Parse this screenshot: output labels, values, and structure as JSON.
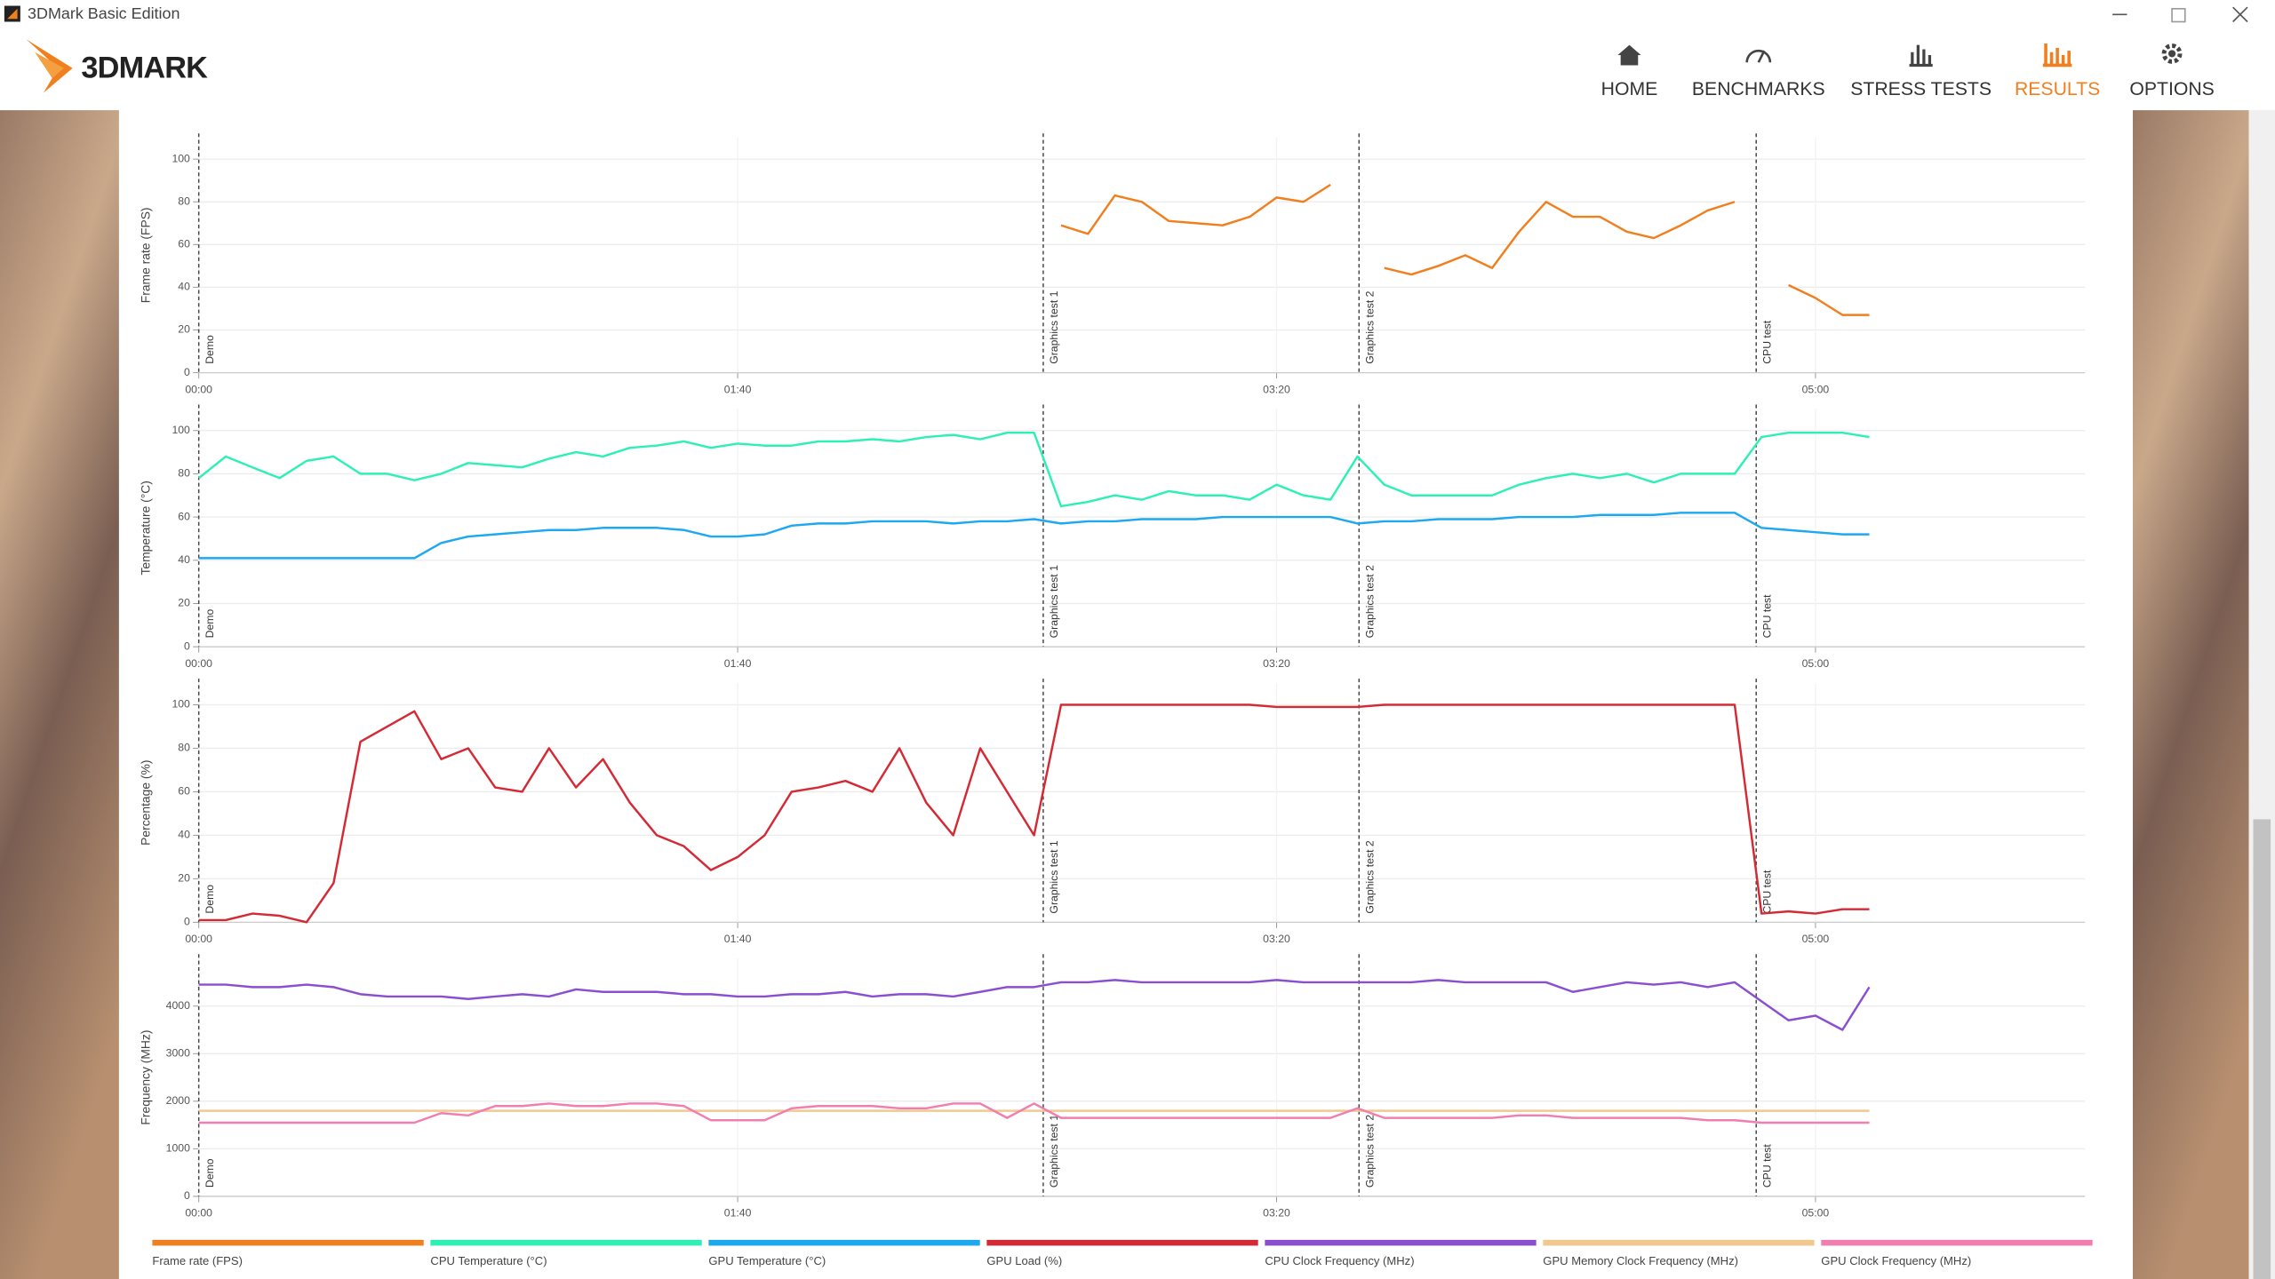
{
  "window_title": "3DMark Basic Edition",
  "logo": "3DMARK",
  "nav": {
    "items": [
      "HOME",
      "BENCHMARKS",
      "STRESS TESTS",
      "RESULTS",
      "OPTIONS"
    ],
    "active": "RESULTS"
  },
  "markers": [
    {
      "label": "Demo",
      "x": 0
    },
    {
      "label": "Graphics test 1",
      "x": 156.7
    },
    {
      "label": "Graphics test 2",
      "x": 215.3
    },
    {
      "label": "CPU test",
      "x": 289
    }
  ],
  "chart_data": [
    {
      "type": "line",
      "y_label": "Frame rate (FPS)",
      "xlim": [
        0,
        350
      ],
      "xticks": [
        {
          "value": 0,
          "label": "00:00"
        },
        {
          "value": 100,
          "label": "01:40"
        },
        {
          "value": 200,
          "label": "03:20"
        },
        {
          "value": 300,
          "label": "05:00"
        }
      ],
      "ylim": [
        0,
        110
      ],
      "yticks": [
        0,
        20,
        40,
        60,
        80,
        100
      ],
      "grid": true,
      "x": [
        0,
        5,
        10,
        15,
        20,
        25,
        30,
        35,
        40,
        45,
        50,
        55,
        60,
        65,
        70,
        75,
        80,
        85,
        90,
        95,
        100,
        105,
        110,
        115,
        120,
        125,
        130,
        135,
        140,
        145,
        150,
        155,
        160,
        165,
        170,
        175,
        180,
        185,
        190,
        195,
        200,
        205,
        210,
        215,
        220,
        225,
        230,
        235,
        240,
        245,
        250,
        255,
        260,
        265,
        270,
        275,
        280,
        285,
        290,
        295,
        300,
        305,
        310
      ],
      "series": [
        {
          "name": "Frame rate (FPS)",
          "color": "#f07f1f",
          "values": [
            null,
            null,
            null,
            null,
            null,
            null,
            null,
            null,
            null,
            null,
            null,
            null,
            null,
            null,
            null,
            null,
            null,
            null,
            null,
            null,
            null,
            null,
            null,
            null,
            null,
            null,
            null,
            null,
            null,
            null,
            null,
            null,
            69,
            65,
            83,
            80,
            71,
            70,
            69,
            73,
            82,
            80,
            88,
            null,
            49,
            46,
            50,
            55,
            49,
            66,
            80,
            73,
            73,
            66,
            63,
            69,
            76,
            80,
            null,
            41,
            35,
            27,
            27
          ]
        }
      ]
    },
    {
      "type": "line",
      "y_label": "Temperature (°C)",
      "xlim": [
        0,
        350
      ],
      "xticks": [
        {
          "value": 0,
          "label": "00:00"
        },
        {
          "value": 100,
          "label": "01:40"
        },
        {
          "value": 200,
          "label": "03:20"
        },
        {
          "value": 300,
          "label": "05:00"
        }
      ],
      "ylim": [
        0,
        110
      ],
      "yticks": [
        0,
        20,
        40,
        60,
        80,
        100
      ],
      "grid": true,
      "x": [
        0,
        5,
        10,
        15,
        20,
        25,
        30,
        35,
        40,
        45,
        50,
        55,
        60,
        65,
        70,
        75,
        80,
        85,
        90,
        95,
        100,
        105,
        110,
        115,
        120,
        125,
        130,
        135,
        140,
        145,
        150,
        155,
        160,
        165,
        170,
        175,
        180,
        185,
        190,
        195,
        200,
        205,
        210,
        215,
        220,
        225,
        230,
        235,
        240,
        245,
        250,
        255,
        260,
        265,
        270,
        275,
        280,
        285,
        290,
        295,
        300,
        305,
        310
      ],
      "series": [
        {
          "name": "CPU Temperature (°C)",
          "color": "#2ef0b5",
          "values": [
            78,
            88,
            83,
            78,
            86,
            88,
            80,
            80,
            77,
            80,
            85,
            84,
            83,
            87,
            90,
            88,
            92,
            93,
            95,
            92,
            94,
            93,
            93,
            95,
            95,
            96,
            95,
            97,
            98,
            96,
            99,
            99,
            65,
            67,
            70,
            68,
            72,
            70,
            70,
            68,
            75,
            70,
            68,
            88,
            75,
            70,
            70,
            70,
            70,
            75,
            78,
            80,
            78,
            80,
            76,
            80,
            80,
            80,
            97,
            99,
            99,
            99,
            97
          ]
        },
        {
          "name": "GPU Temperature (°C)",
          "color": "#1ea8f0",
          "values": [
            41,
            41,
            41,
            41,
            41,
            41,
            41,
            41,
            41,
            48,
            51,
            52,
            53,
            54,
            54,
            55,
            55,
            55,
            54,
            51,
            51,
            52,
            56,
            57,
            57,
            58,
            58,
            58,
            57,
            58,
            58,
            59,
            57,
            58,
            58,
            59,
            59,
            59,
            60,
            60,
            60,
            60,
            60,
            57,
            58,
            58,
            59,
            59,
            59,
            60,
            60,
            60,
            61,
            61,
            61,
            62,
            62,
            62,
            55,
            54,
            53,
            52,
            52
          ]
        }
      ]
    },
    {
      "type": "line",
      "y_label": "Percentage (%)",
      "xlim": [
        0,
        350
      ],
      "xticks": [
        {
          "value": 0,
          "label": "00:00"
        },
        {
          "value": 100,
          "label": "01:40"
        },
        {
          "value": 200,
          "label": "03:20"
        },
        {
          "value": 300,
          "label": "05:00"
        }
      ],
      "ylim": [
        0,
        110
      ],
      "yticks": [
        0,
        20,
        40,
        60,
        80,
        100
      ],
      "grid": true,
      "x": [
        0,
        5,
        10,
        15,
        20,
        25,
        30,
        35,
        40,
        45,
        50,
        55,
        60,
        65,
        70,
        75,
        80,
        85,
        90,
        95,
        100,
        105,
        110,
        115,
        120,
        125,
        130,
        135,
        140,
        145,
        150,
        155,
        160,
        165,
        170,
        175,
        180,
        185,
        190,
        195,
        200,
        205,
        210,
        215,
        220,
        225,
        230,
        235,
        240,
        245,
        250,
        255,
        260,
        265,
        270,
        275,
        280,
        285,
        290,
        295,
        300,
        305,
        310
      ],
      "series": [
        {
          "name": "GPU Load (%)",
          "color": "#d42a35",
          "values": [
            1,
            1,
            4,
            3,
            0,
            18,
            83,
            90,
            97,
            75,
            80,
            62,
            60,
            80,
            62,
            75,
            55,
            40,
            35,
            24,
            30,
            40,
            60,
            62,
            65,
            60,
            80,
            55,
            40,
            80,
            60,
            40,
            100,
            100,
            100,
            100,
            100,
            100,
            100,
            100,
            99,
            99,
            99,
            99,
            100,
            100,
            100,
            100,
            100,
            100,
            100,
            100,
            100,
            100,
            100,
            100,
            100,
            100,
            4,
            5,
            4,
            6,
            6
          ]
        }
      ]
    },
    {
      "type": "line",
      "y_label": "Frequency (MHz)",
      "xlim": [
        0,
        350
      ],
      "xticks": [
        {
          "value": 0,
          "label": "00:00"
        },
        {
          "value": 100,
          "label": "01:40"
        },
        {
          "value": 200,
          "label": "03:20"
        },
        {
          "value": 300,
          "label": "05:00"
        }
      ],
      "ylim": [
        0,
        5000
      ],
      "yticks": [
        0,
        1000,
        2000,
        3000,
        4000
      ],
      "grid": true,
      "x": [
        0,
        5,
        10,
        15,
        20,
        25,
        30,
        35,
        40,
        45,
        50,
        55,
        60,
        65,
        70,
        75,
        80,
        85,
        90,
        95,
        100,
        105,
        110,
        115,
        120,
        125,
        130,
        135,
        140,
        145,
        150,
        155,
        160,
        165,
        170,
        175,
        180,
        185,
        190,
        195,
        200,
        205,
        210,
        215,
        220,
        225,
        230,
        235,
        240,
        245,
        250,
        255,
        260,
        265,
        270,
        275,
        280,
        285,
        290,
        295,
        300,
        305,
        310
      ],
      "series": [
        {
          "name": "CPU Clock Frequency (MHz)",
          "color": "#8a4fd0",
          "values": [
            4450,
            4450,
            4400,
            4400,
            4450,
            4400,
            4250,
            4200,
            4200,
            4200,
            4150,
            4200,
            4250,
            4200,
            4350,
            4300,
            4300,
            4300,
            4250,
            4250,
            4200,
            4200,
            4250,
            4250,
            4300,
            4200,
            4250,
            4250,
            4200,
            4300,
            4400,
            4400,
            4500,
            4500,
            4550,
            4500,
            4500,
            4500,
            4500,
            4500,
            4550,
            4500,
            4500,
            4500,
            4500,
            4500,
            4550,
            4500,
            4500,
            4500,
            4500,
            4300,
            4400,
            4500,
            4450,
            4500,
            4400,
            4500,
            4100,
            3700,
            3800,
            3500,
            4400
          ]
        },
        {
          "name": "GPU Memory Clock Frequency (MHz)",
          "color": "#f0c890",
          "values": [
            1800,
            1800,
            1800,
            1800,
            1800,
            1800,
            1800,
            1800,
            1800,
            1800,
            1800,
            1800,
            1800,
            1800,
            1800,
            1800,
            1800,
            1800,
            1800,
            1800,
            1800,
            1800,
            1800,
            1800,
            1800,
            1800,
            1800,
            1800,
            1800,
            1800,
            1800,
            1800,
            1800,
            1800,
            1800,
            1800,
            1800,
            1800,
            1800,
            1800,
            1800,
            1800,
            1800,
            1800,
            1800,
            1800,
            1800,
            1800,
            1800,
            1800,
            1800,
            1800,
            1800,
            1800,
            1800,
            1800,
            1800,
            1800,
            1800,
            1800,
            1800,
            1800,
            1800
          ]
        },
        {
          "name": "GPU Clock Frequency (MHz)",
          "color": "#f07fb0",
          "values": [
            1550,
            1550,
            1550,
            1550,
            1550,
            1550,
            1550,
            1550,
            1550,
            1750,
            1700,
            1900,
            1900,
            1950,
            1900,
            1900,
            1950,
            1950,
            1900,
            1600,
            1600,
            1600,
            1850,
            1900,
            1900,
            1900,
            1850,
            1850,
            1950,
            1950,
            1650,
            1950,
            1650,
            1650,
            1650,
            1650,
            1650,
            1650,
            1650,
            1650,
            1650,
            1650,
            1650,
            1850,
            1650,
            1650,
            1650,
            1650,
            1650,
            1700,
            1700,
            1650,
            1650,
            1650,
            1650,
            1650,
            1600,
            1600,
            1550,
            1550,
            1550,
            1550,
            1550
          ]
        }
      ]
    }
  ]
}
